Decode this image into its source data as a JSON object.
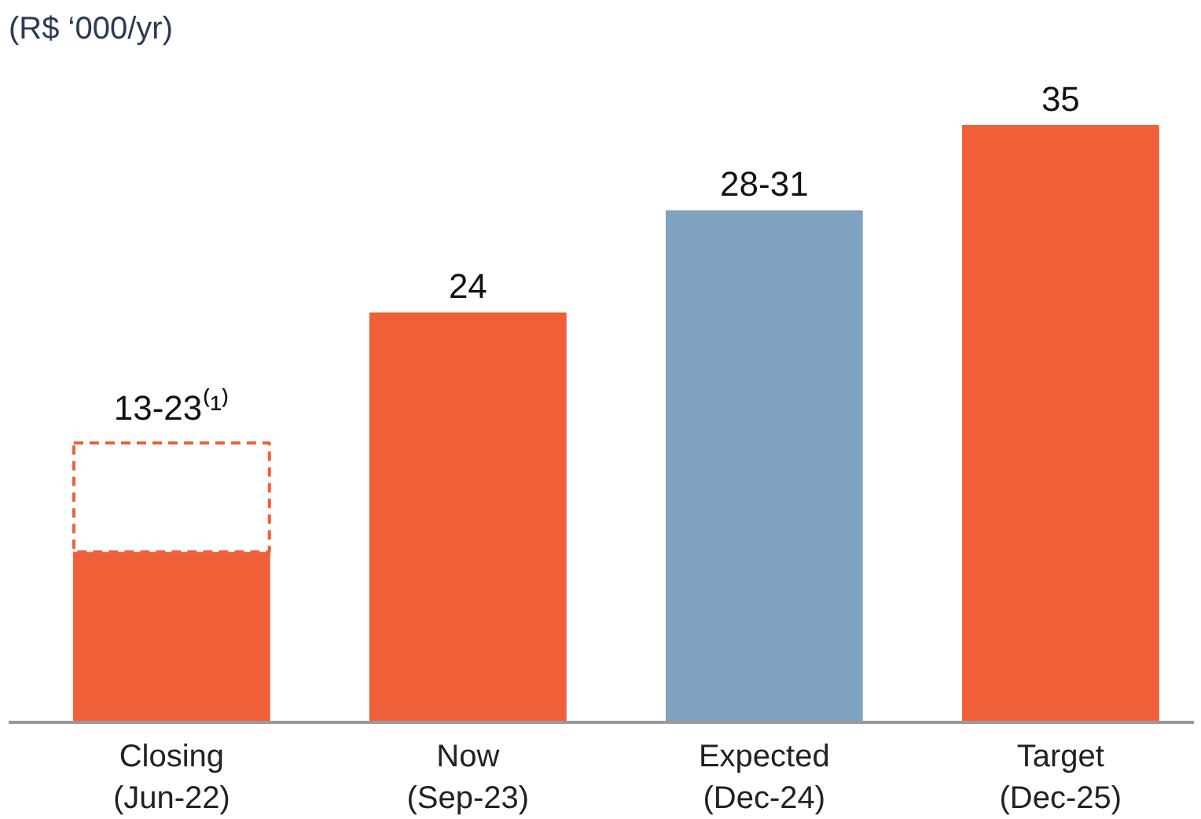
{
  "chart_data": {
    "type": "bar",
    "stacked": true,
    "title": "(R$ ‘000/yr)",
    "categories": [
      "Closing\n(Jun-22)",
      "Now\n(Sep-23)",
      "Expected\n(Dec-24)",
      "Target\n(Dec-25)"
    ],
    "grid": false,
    "tick_labels": "x",
    "series": [
      {
        "colors": [
          "#f06038",
          "#f06038",
          "#7fa3c0",
          "#f06038"
        ],
        "values": [
          10,
          24,
          30,
          35
        ],
        "value_labels": [
          null,
          "24",
          "28-31",
          "35"
        ]
      },
      {
        "color": "#f06038",
        "line_style": "dashed",
        "values": [
          6.4,
          null,
          null,
          null
        ],
        "value_labels": [
          "13-23⁽¹⁾",
          null,
          null,
          null
        ]
      }
    ]
  }
}
